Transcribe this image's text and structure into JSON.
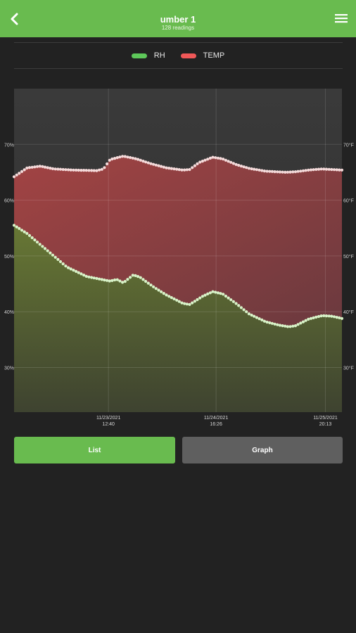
{
  "header": {
    "title": "umber 1",
    "subtitle": "128 readings",
    "bg_color": "#69bb4f"
  },
  "icons": {
    "back": "chevron-left-icon",
    "menu": "hamburger-menu-icon"
  },
  "legend": [
    {
      "label": "RH",
      "color": "#5ec85a"
    },
    {
      "label": "TEMP",
      "color": "#f05858"
    }
  ],
  "buttons": {
    "list_label": "List",
    "graph_label": "Graph",
    "active": "List"
  },
  "chart_data": {
    "type": "area",
    "series": [
      {
        "name": "RH",
        "axis": "left",
        "color": "#5ec85a",
        "keypoints": [
          [
            0,
            55.5
          ],
          [
            4,
            54
          ],
          [
            10,
            51
          ],
          [
            16,
            48
          ],
          [
            22,
            46.3
          ],
          [
            29,
            45.5
          ],
          [
            31,
            45.8
          ],
          [
            33,
            45.2
          ],
          [
            36,
            46.6
          ],
          [
            38,
            46.2
          ],
          [
            42,
            44.5
          ],
          [
            46,
            43
          ],
          [
            51,
            41.5
          ],
          [
            53,
            41.3
          ],
          [
            57,
            42.8
          ],
          [
            60,
            43.6
          ],
          [
            63,
            43.2
          ],
          [
            67,
            41.5
          ],
          [
            71,
            39.6
          ],
          [
            76,
            38.2
          ],
          [
            80,
            37.6
          ],
          [
            83,
            37.3
          ],
          [
            85,
            37.5
          ],
          [
            89,
            38.7
          ],
          [
            93,
            39.3
          ],
          [
            96,
            39.2
          ],
          [
            99,
            38.8
          ]
        ]
      },
      {
        "name": "TEMP",
        "axis": "right",
        "color": "#f05858",
        "keypoints": [
          [
            0,
            64.2
          ],
          [
            4,
            65.8
          ],
          [
            8,
            66.1
          ],
          [
            12,
            65.6
          ],
          [
            18,
            65.4
          ],
          [
            25,
            65.3
          ],
          [
            27,
            65.6
          ],
          [
            29,
            67.3
          ],
          [
            33,
            67.9
          ],
          [
            37,
            67.4
          ],
          [
            41,
            66.6
          ],
          [
            46,
            65.8
          ],
          [
            51,
            65.4
          ],
          [
            53,
            65.5
          ],
          [
            56,
            66.8
          ],
          [
            60,
            67.7
          ],
          [
            63,
            67.4
          ],
          [
            67,
            66.4
          ],
          [
            71,
            65.7
          ],
          [
            76,
            65.2
          ],
          [
            82,
            65
          ],
          [
            85,
            65.1
          ],
          [
            89,
            65.4
          ],
          [
            93,
            65.6
          ],
          [
            99,
            65.4
          ]
        ]
      }
    ],
    "x_ticks": [
      {
        "pos": 28.5,
        "date": "11/23/2021",
        "time": "12:40"
      },
      {
        "pos": 61,
        "date": "11/24/2021",
        "time": "16:26"
      },
      {
        "pos": 94,
        "date": "11/25/2021",
        "time": "20:13"
      }
    ],
    "x_range": [
      0,
      99
    ],
    "y_left": {
      "ticks": [
        30,
        40,
        50,
        60,
        70
      ],
      "labels": [
        "30%",
        "40%",
        "50%",
        "60%",
        "70%"
      ],
      "range": [
        22,
        80
      ]
    },
    "y_right": {
      "ticks": [
        30,
        40,
        50,
        60,
        70
      ],
      "labels": [
        "30°F",
        "40°F",
        "50°F",
        "60°F",
        "70°F"
      ],
      "range": [
        22,
        80
      ]
    },
    "grid": true,
    "legend_position": "top-center",
    "point_count": 128
  }
}
